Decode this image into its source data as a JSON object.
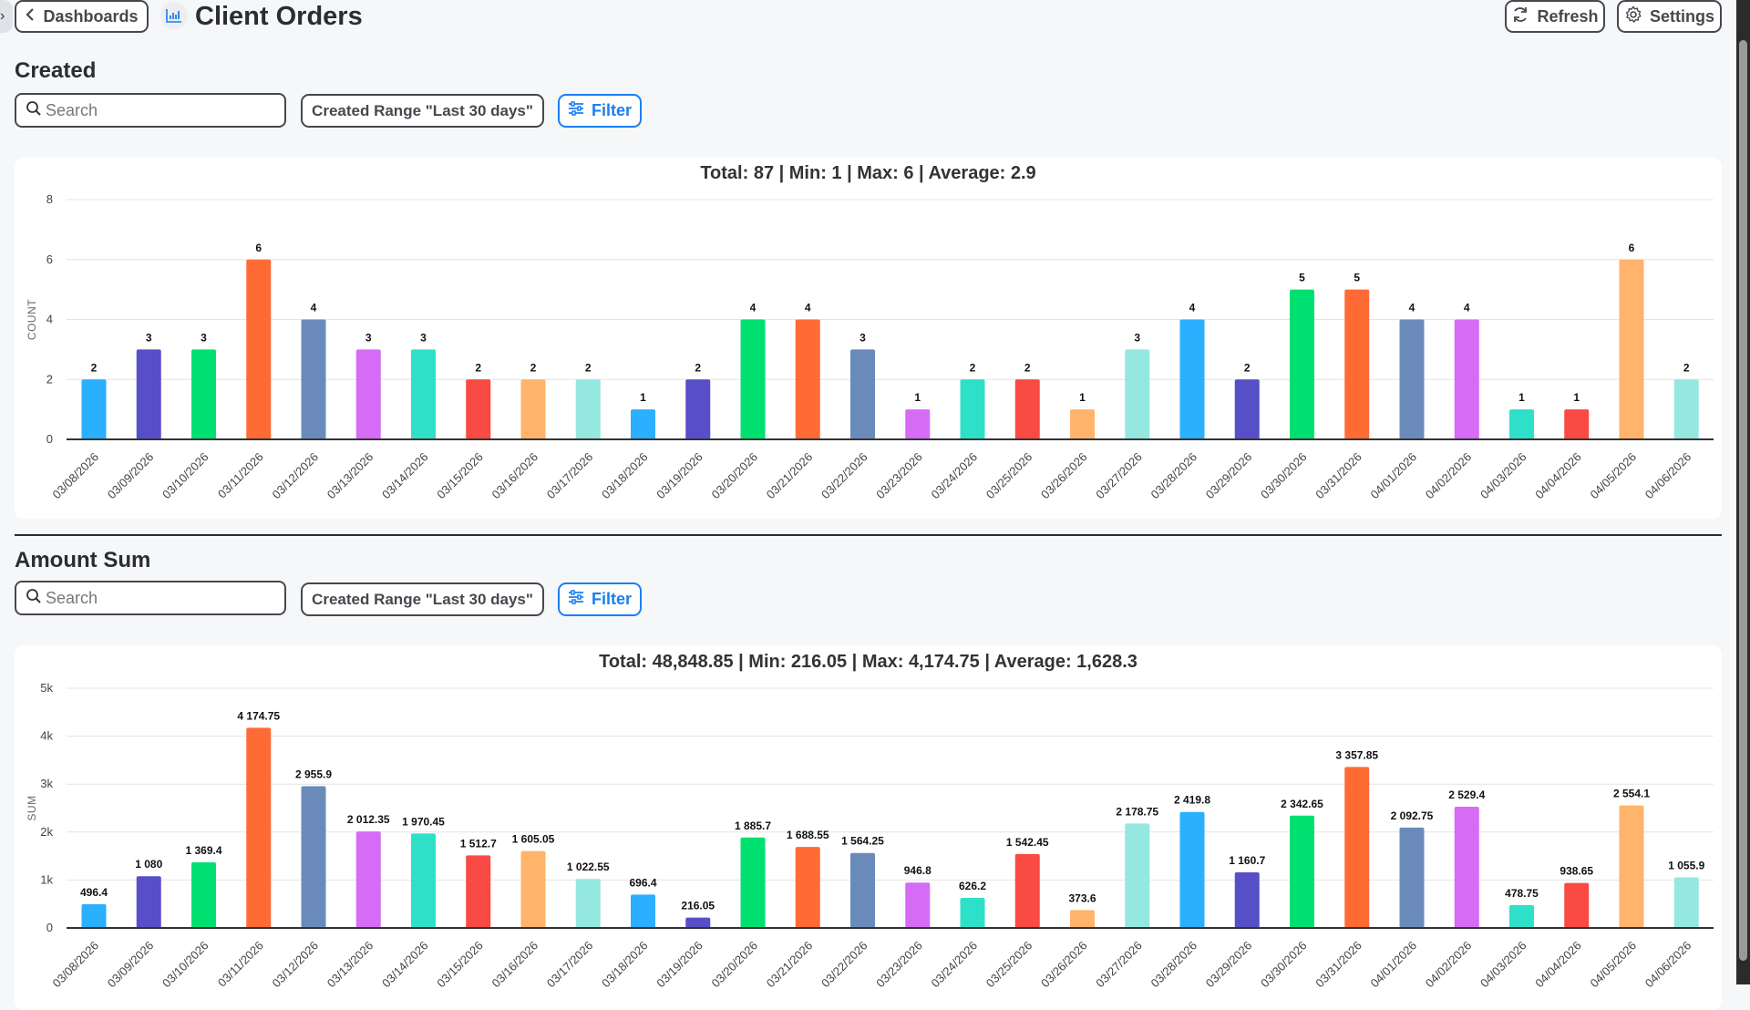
{
  "header": {
    "back_label": "Dashboards",
    "title": "Client Orders",
    "refresh_label": "Refresh",
    "settings_label": "Settings",
    "title_icon": "bar-chart-icon"
  },
  "sections": [
    {
      "heading": "Created",
      "search_placeholder": "Search",
      "range_label": "Created Range \"Last 30 days\"",
      "filter_label": "Filter"
    },
    {
      "heading": "Amount Sum",
      "search_placeholder": "Search",
      "range_label": "Created Range \"Last 30 days\"",
      "filter_label": "Filter"
    }
  ],
  "colors": [
    "#2bafff",
    "#574fc8",
    "#00e070",
    "#ff6b35",
    "#6a8bba",
    "#d66bf5",
    "#2ee0c8",
    "#f94a44",
    "#ffb36b",
    "#94e8e0"
  ],
  "chart_data": [
    {
      "type": "bar",
      "title": "Total: 87 | Min: 1 | Max: 6 | Average: 2.9",
      "ylabel": "COUNT",
      "xlabel": "",
      "ylim": [
        0,
        8
      ],
      "yticks": [
        "0",
        "2",
        "4",
        "6",
        "8"
      ],
      "ytick_values": [
        0,
        2,
        4,
        6,
        8
      ],
      "grid": true,
      "categories": [
        "03/08/2026",
        "03/09/2026",
        "03/10/2026",
        "03/11/2026",
        "03/12/2026",
        "03/13/2026",
        "03/14/2026",
        "03/15/2026",
        "03/16/2026",
        "03/17/2026",
        "03/18/2026",
        "03/19/2026",
        "03/20/2026",
        "03/21/2026",
        "03/22/2026",
        "03/23/2026",
        "03/24/2026",
        "03/25/2026",
        "03/26/2026",
        "03/27/2026",
        "03/28/2026",
        "03/29/2026",
        "03/30/2026",
        "03/31/2026",
        "04/01/2026",
        "04/02/2026",
        "04/03/2026",
        "04/04/2026",
        "04/05/2026",
        "04/06/2026"
      ],
      "values": [
        2,
        3,
        3,
        6,
        4,
        3,
        3,
        2,
        2,
        2,
        1,
        2,
        4,
        4,
        3,
        1,
        2,
        2,
        1,
        3,
        4,
        2,
        5,
        5,
        4,
        4,
        1,
        1,
        6,
        2
      ]
    },
    {
      "type": "bar",
      "title": "Total: 48,848.85 | Min: 216.05 | Max: 4,174.75 | Average: 1,628.3",
      "ylabel": "SUM",
      "xlabel": "",
      "ylim": [
        0,
        5000
      ],
      "yticks": [
        "0",
        "1k",
        "2k",
        "3k",
        "4k",
        "5k"
      ],
      "ytick_values": [
        0,
        1000,
        2000,
        3000,
        4000,
        5000
      ],
      "grid": true,
      "categories": [
        "03/08/2026",
        "03/09/2026",
        "03/10/2026",
        "03/11/2026",
        "03/12/2026",
        "03/13/2026",
        "03/14/2026",
        "03/15/2026",
        "03/16/2026",
        "03/17/2026",
        "03/18/2026",
        "03/19/2026",
        "03/20/2026",
        "03/21/2026",
        "03/22/2026",
        "03/23/2026",
        "03/24/2026",
        "03/25/2026",
        "03/26/2026",
        "03/27/2026",
        "03/28/2026",
        "03/29/2026",
        "03/30/2026",
        "03/31/2026",
        "04/01/2026",
        "04/02/2026",
        "04/03/2026",
        "04/04/2026",
        "04/05/2026",
        "04/06/2026"
      ],
      "values": [
        496.4,
        1080,
        1369.4,
        4174.75,
        2955.9,
        2012.35,
        1970.45,
        1512.7,
        1605.05,
        1022.55,
        696.4,
        216.05,
        1885.7,
        1688.55,
        1564.25,
        946.8,
        626.2,
        1542.45,
        373.6,
        2178.75,
        2419.8,
        1160.7,
        2342.65,
        3357.85,
        2092.75,
        2529.4,
        478.75,
        938.65,
        2554.1,
        1055.9
      ]
    }
  ]
}
